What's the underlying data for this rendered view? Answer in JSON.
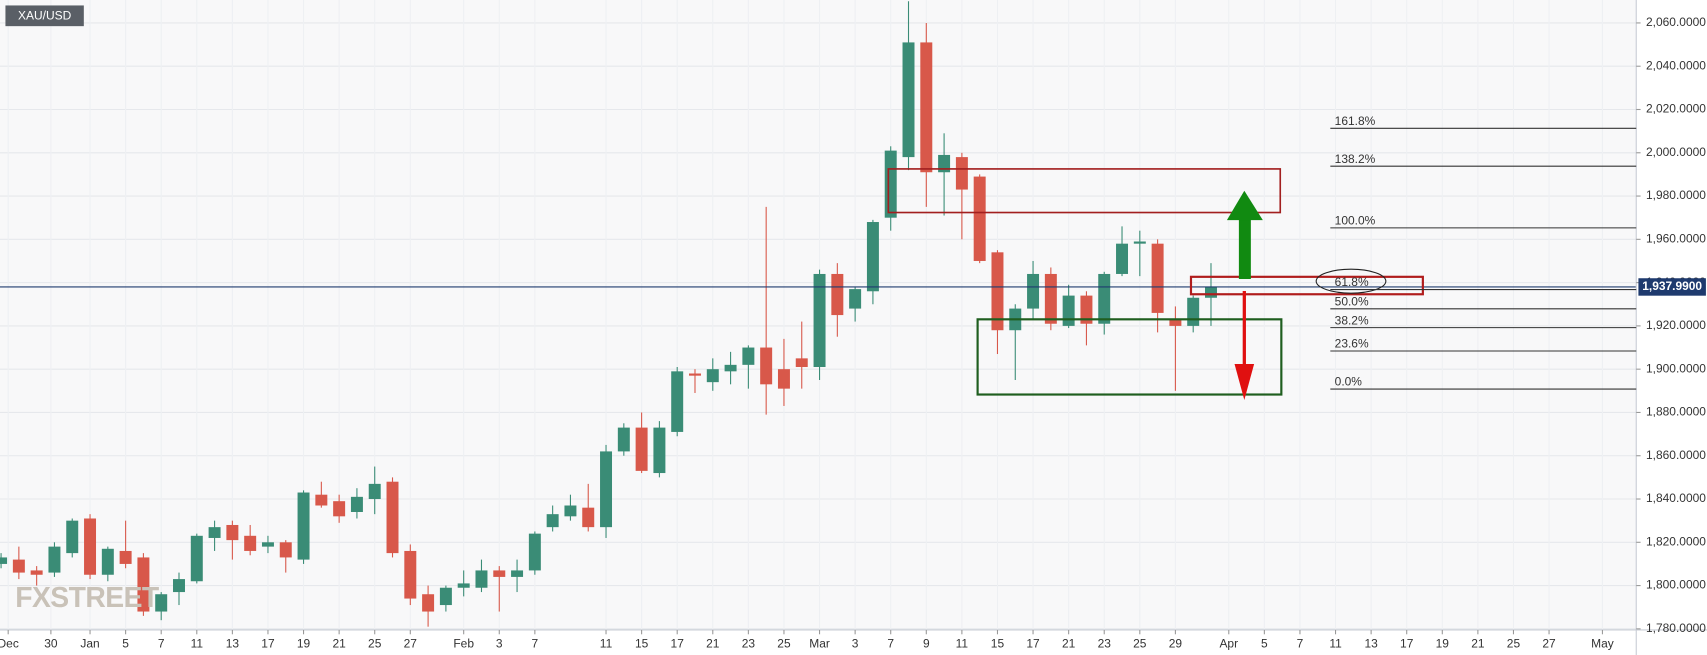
{
  "chart_data": {
    "type": "candlestick",
    "instrument": "XAU/USD",
    "watermark": "FXSTREET",
    "up_color": "#3a8c76",
    "down_color": "#d8584a",
    "open": [
      1810,
      1812,
      1807,
      1806,
      1815,
      1831,
      1805,
      1816,
      1813,
      1788,
      1797,
      1802,
      1822,
      1828,
      1823,
      1818,
      1820,
      1812,
      1842,
      1839,
      1834,
      1840,
      1848,
      1816,
      1796,
      1791,
      1799,
      1799,
      1807,
      1804,
      1807,
      1827,
      1832,
      1836,
      1827,
      1862,
      1873,
      1852,
      1871,
      1898,
      1894,
      1899,
      1902,
      1910,
      1900,
      1905,
      1901,
      1944,
      1928,
      1936,
      1970,
      1998,
      2051,
      1991,
      1998,
      1989,
      1954,
      1918,
      1928,
      1944,
      1920,
      1934,
      1921,
      1944,
      1958,
      1958,
      1923,
      1920,
      1933
    ],
    "high": [
      1815,
      1818,
      1809,
      1820,
      1831,
      1833,
      1818,
      1830,
      1815,
      1797,
      1806,
      1824,
      1830,
      1830,
      1828,
      1823,
      1821,
      1844,
      1848,
      1842,
      1845,
      1855,
      1850,
      1819,
      1800,
      1800,
      1807,
      1812,
      1809,
      1812,
      1825,
      1837,
      1842,
      1847,
      1865,
      1875,
      1880,
      1876,
      1901,
      1900,
      1905,
      1908,
      1911,
      1975,
      1914,
      1922,
      1946,
      1949,
      1938,
      1969,
      2003,
      2070,
      2060,
      2009,
      2000,
      1990,
      1955,
      1930,
      1950,
      1947,
      1939,
      1936,
      1945,
      1966,
      1964,
      1960,
      1929,
      1934,
      1949
    ],
    "low": [
      1808,
      1803,
      1800,
      1804,
      1813,
      1803,
      1802,
      1808,
      1786,
      1784,
      1791,
      1801,
      1816,
      1812,
      1814,
      1815,
      1806,
      1810,
      1836,
      1829,
      1831,
      1833,
      1813,
      1791,
      1781,
      1788,
      1795,
      1797,
      1788,
      1797,
      1805,
      1825,
      1830,
      1825,
      1822,
      1860,
      1852,
      1850,
      1869,
      1889,
      1890,
      1893,
      1891,
      1879,
      1883,
      1891,
      1895,
      1915,
      1922,
      1930,
      1964,
      1992,
      1975,
      1971,
      1960,
      1949,
      1907,
      1895,
      1923,
      1918,
      1919,
      1911,
      1916,
      1943,
      1943,
      1917,
      1890,
      1917,
      1920
    ],
    "close": [
      1813,
      1806,
      1805,
      1818,
      1830,
      1805,
      1817,
      1810,
      1788,
      1796,
      1803,
      1823,
      1827,
      1821,
      1816,
      1820,
      1813,
      1843,
      1837,
      1832,
      1841,
      1847,
      1815,
      1794,
      1788,
      1799,
      1801,
      1807,
      1804,
      1807,
      1824,
      1833,
      1837,
      1827,
      1862,
      1873,
      1853,
      1873,
      1899,
      1897,
      1900,
      1902,
      1910,
      1893,
      1891,
      1901,
      1944,
      1925,
      1937,
      1968,
      2001,
      2051,
      1991,
      1999,
      1983,
      1950,
      1918,
      1928,
      1944,
      1921,
      1934,
      1921,
      1944,
      1958,
      1959,
      1926,
      1920,
      1933,
      1938
    ],
    "ylim": [
      1779.5,
      2070.6
    ],
    "yticks": [
      {
        "value": 1780,
        "label": "1,780.0000"
      },
      {
        "value": 1800,
        "label": "1,800.0000"
      },
      {
        "value": 1820,
        "label": "1,820.0000"
      },
      {
        "value": 1840,
        "label": "1,840.0000"
      },
      {
        "value": 1860,
        "label": "1,860.0000"
      },
      {
        "value": 1880,
        "label": "1,880.0000"
      },
      {
        "value": 1900,
        "label": "1,900.0000"
      },
      {
        "value": 1920,
        "label": "1,920.0000"
      },
      {
        "value": 1940,
        "label": "1,940.0000"
      },
      {
        "value": 1960,
        "label": "1,960.0000"
      },
      {
        "value": 1980,
        "label": "1,980.0000"
      },
      {
        "value": 2000,
        "label": "2,000.0000"
      },
      {
        "value": 2020,
        "label": "2,020.0000"
      },
      {
        "value": 2040,
        "label": "2,040.0000"
      },
      {
        "value": 2060,
        "label": "2,060.0000"
      }
    ],
    "xlim": [
      -0.06,
      91.9
    ],
    "xticks": [
      {
        "value": 0.4,
        "label": "Dec"
      },
      {
        "value": 2.8,
        "label": "30"
      },
      {
        "value": 5,
        "label": "Jan"
      },
      {
        "value": 7,
        "label": "5"
      },
      {
        "value": 9,
        "label": "7"
      },
      {
        "value": 11,
        "label": "11"
      },
      {
        "value": 13,
        "label": "13"
      },
      {
        "value": 15,
        "label": "17"
      },
      {
        "value": 17,
        "label": "19"
      },
      {
        "value": 19,
        "label": "21"
      },
      {
        "value": 21,
        "label": "25"
      },
      {
        "value": 23,
        "label": "27"
      },
      {
        "value": 26,
        "label": "Feb"
      },
      {
        "value": 28,
        "label": "3"
      },
      {
        "value": 30,
        "label": "7"
      },
      {
        "value": 34,
        "label": "11"
      },
      {
        "value": 36,
        "label": "15"
      },
      {
        "value": 38,
        "label": "17"
      },
      {
        "value": 40,
        "label": "21"
      },
      {
        "value": 42,
        "label": "23"
      },
      {
        "value": 44,
        "label": "25"
      },
      {
        "value": 46,
        "label": "Mar"
      },
      {
        "value": 48,
        "label": "3"
      },
      {
        "value": 50,
        "label": "7"
      },
      {
        "value": 52,
        "label": "9"
      },
      {
        "value": 54,
        "label": "11"
      },
      {
        "value": 56,
        "label": "15"
      },
      {
        "value": 58,
        "label": "17"
      },
      {
        "value": 60,
        "label": "21"
      },
      {
        "value": 62,
        "label": "23"
      },
      {
        "value": 64,
        "label": "25"
      },
      {
        "value": 66,
        "label": "29"
      },
      {
        "value": 69,
        "label": "Apr"
      },
      {
        "value": 71,
        "label": "5"
      },
      {
        "value": 73,
        "label": "7"
      },
      {
        "value": 75,
        "label": "11"
      },
      {
        "value": 77,
        "label": "13"
      },
      {
        "value": 79,
        "label": "17"
      },
      {
        "value": 81,
        "label": "19"
      },
      {
        "value": 83,
        "label": "21"
      },
      {
        "value": 85,
        "label": "25"
      },
      {
        "value": 87,
        "label": "27"
      },
      {
        "value": 90,
        "label": "May"
      }
    ],
    "current_price": {
      "value": 1937.99,
      "label": "1,937.9900"
    },
    "fib_levels": [
      {
        "name": "161.8%",
        "price": 2011.3
      },
      {
        "name": "138.2%",
        "price": 1993.8
      },
      {
        "name": "100.0%",
        "price": 1965.3
      },
      {
        "name": "61.8%",
        "price": 1936.8
      },
      {
        "name": "50.0%",
        "price": 1927.9
      },
      {
        "name": "38.2%",
        "price": 1919.2
      },
      {
        "name": "23.6%",
        "price": 1908.4
      },
      {
        "name": "0.0%",
        "price": 1890.8
      }
    ],
    "grid": true
  }
}
